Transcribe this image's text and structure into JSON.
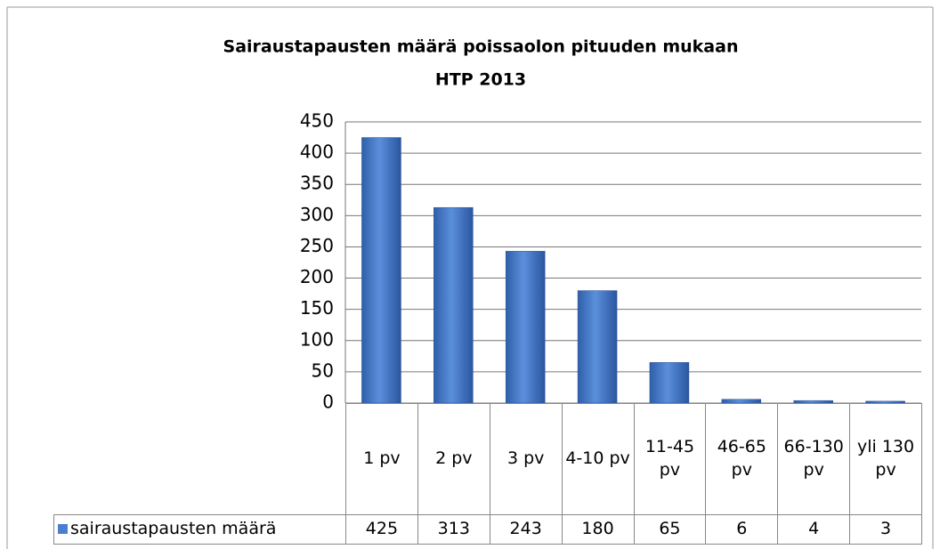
{
  "chart_data": {
    "type": "bar",
    "title": "Sairaustapausten määrä poissaolon pituuden mukaan",
    "subtitle": "HTP 2013",
    "categories": [
      "1 pv",
      "2 pv",
      "3 pv",
      "4-10 pv",
      "11-45 pv",
      "46-65 pv",
      "66-130 pv",
      "yli 130 pv"
    ],
    "series": [
      {
        "name": "sairaustapausten määrä",
        "color": "#4a7fd0",
        "values": [
          425,
          313,
          243,
          180,
          65,
          6,
          4,
          3
        ]
      }
    ],
    "ylim": [
      0,
      450
    ],
    "yticks": [
      0,
      50,
      100,
      150,
      200,
      250,
      300,
      350,
      400,
      450
    ],
    "grid": true,
    "legend": "table"
  }
}
